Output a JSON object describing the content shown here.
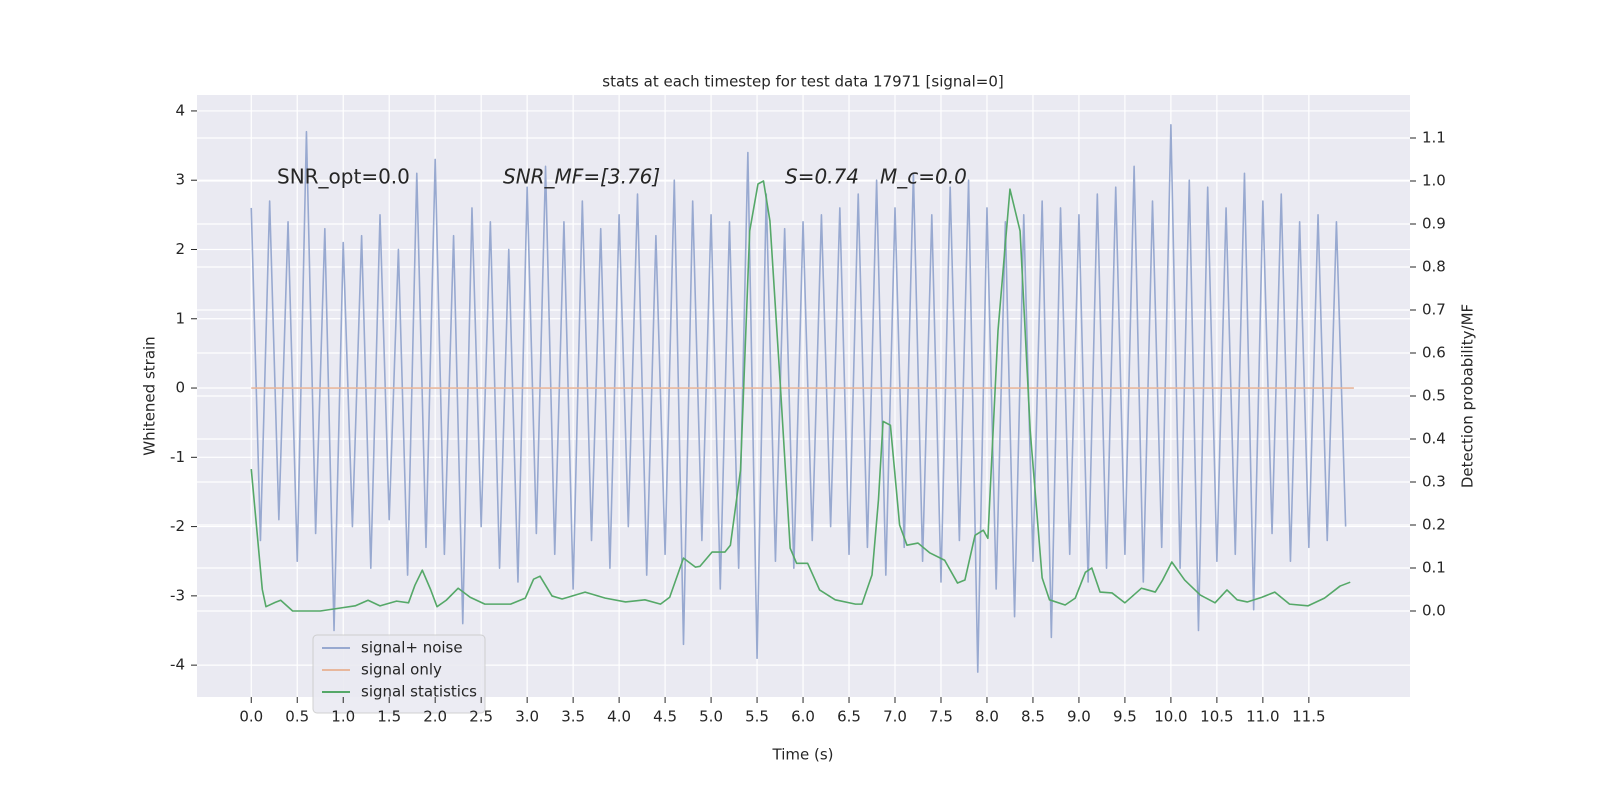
{
  "chart_data": {
    "type": "line",
    "title": "stats at each timestep for test data 17971 [signal=0]",
    "xlabel": "Time (s)",
    "ylabel": "Whitened strain",
    "y2label": "Detection probability/MF",
    "annotations": [
      "SNR_opt=0.0",
      "SNR_MF=[3.76]",
      "S=0.74",
      "M_c=0.0"
    ],
    "xlim": [
      -0.59,
      12.6
    ],
    "ylim": [
      -4.46,
      4.23
    ],
    "y2lim": [
      -0.2,
      1.2
    ],
    "xticks": [
      {
        "value": 0,
        "label": "0.0"
      },
      0.5,
      {
        "value": 1,
        "label": "1.0"
      },
      1.5,
      {
        "value": 2,
        "label": "2.0"
      },
      2.5,
      {
        "value": 3,
        "label": "3.0"
      },
      3.5,
      {
        "value": 4,
        "label": "4.0"
      },
      4.5,
      {
        "value": 5,
        "label": "5.0"
      },
      5.5,
      {
        "value": 6,
        "label": "6.0"
      },
      6.5,
      {
        "value": 7,
        "label": "7.0"
      },
      7.5,
      {
        "value": 8,
        "label": "8.0"
      },
      8.5,
      {
        "value": 9,
        "label": "9.0"
      },
      9.5,
      {
        "value": 10,
        "label": "10.0"
      },
      10.5,
      {
        "value": 11,
        "label": "11.0"
      },
      11.5
    ],
    "yticks": [
      -4,
      -3,
      -2,
      -1,
      0,
      1,
      2,
      3,
      4
    ],
    "y2ticks": [
      {
        "value": 0,
        "label": "0.0"
      },
      0.1,
      0.2,
      0.3,
      0.4,
      0.5,
      0.6,
      0.7,
      0.8,
      0.9,
      {
        "value": 1,
        "label": "1.0"
      },
      1.1
    ],
    "grid": true,
    "legend": "lower left",
    "series": [
      {
        "name": "signal+ noise",
        "color": "#98a9d0",
        "x": [
          0,
          0.1,
          0.2,
          0.3,
          0.4,
          0.5,
          0.6,
          0.7,
          0.8,
          0.9,
          1,
          1.1,
          1.2,
          1.3,
          1.4,
          1.5,
          1.6,
          1.7,
          1.8,
          1.9,
          2,
          2.1,
          2.2,
          2.3,
          2.4,
          2.5,
          2.6,
          2.7,
          2.8,
          2.9,
          3,
          3.1,
          3.2,
          3.3,
          3.4,
          3.5,
          3.6,
          3.7,
          3.8,
          3.9,
          4,
          4.1,
          4.2,
          4.3,
          4.4,
          4.5,
          4.6,
          4.7,
          4.8,
          4.9,
          5,
          5.1,
          5.2,
          5.3,
          5.4,
          5.5,
          5.6,
          5.7,
          5.8,
          5.9,
          6,
          6.1,
          6.2,
          6.3,
          6.4,
          6.5,
          6.6,
          6.7,
          6.8,
          6.9,
          7,
          7.1,
          7.2,
          7.3,
          7.4,
          7.5,
          7.6,
          7.7,
          7.8,
          7.9,
          8,
          8.1,
          8.2,
          8.3,
          8.4,
          8.5,
          8.6,
          8.7,
          8.8,
          8.9,
          9,
          9.1,
          9.2,
          9.3,
          9.4,
          9.5,
          9.6,
          9.7,
          9.8,
          9.9,
          10,
          10.1,
          10.2,
          10.3,
          10.4,
          10.5,
          10.6,
          10.7,
          10.8,
          10.9,
          11,
          11.1,
          11.2,
          11.3,
          11.4,
          11.5,
          11.6,
          11.7,
          11.8,
          11.9
        ],
        "values": [
          2.6,
          -2.2,
          2.7,
          -1.9,
          2.4,
          -2.5,
          3.7,
          -2.1,
          2.3,
          -3.5,
          2.1,
          -2.0,
          2.2,
          -2.6,
          2.5,
          -1.9,
          2.0,
          -2.7,
          3.1,
          -2.3,
          3.3,
          -2.4,
          2.2,
          -3.4,
          2.6,
          -2.0,
          2.4,
          -2.6,
          2.0,
          -2.8,
          2.9,
          -2.1,
          3.2,
          -2.4,
          2.4,
          -2.9,
          2.7,
          -2.2,
          2.3,
          -2.6,
          2.5,
          -2.0,
          2.8,
          -2.7,
          2.2,
          -2.4,
          3.0,
          -3.7,
          2.7,
          -2.2,
          2.5,
          -2.9,
          2.4,
          -2.6,
          3.4,
          -3.9,
          2.8,
          -2.5,
          2.3,
          -2.6,
          2.4,
          -2.2,
          2.5,
          -2.0,
          2.6,
          -2.4,
          2.8,
          -2.3,
          3.0,
          -2.7,
          2.6,
          -2.3,
          3.1,
          -2.5,
          2.5,
          -2.8,
          2.9,
          -2.2,
          3.0,
          -4.1,
          2.6,
          -2.9,
          2.4,
          -3.3,
          2.5,
          -2.5,
          2.7,
          -3.6,
          2.6,
          -2.4,
          2.5,
          -2.8,
          2.8,
          -2.6,
          2.9,
          -2.4,
          3.2,
          -2.8,
          2.7,
          -2.3,
          3.8,
          -2.6,
          3.0,
          -3.5,
          2.9,
          -2.5,
          2.6,
          -2.4,
          3.1,
          -3.2,
          2.7,
          -2.1,
          2.8,
          -2.5,
          2.4,
          -2.3,
          2.5,
          -2.2,
          2.4,
          -2.0
        ]
      },
      {
        "name": "signal only",
        "color": "#e8b79c",
        "x": [
          0,
          11.99
        ],
        "values": [
          0,
          0
        ]
      },
      {
        "name": "signal statistics",
        "color": "#55a868",
        "axis": "y2",
        "x": [
          0,
          0.12,
          0.16,
          0.26,
          0.32,
          0.45,
          0.75,
          0.97,
          1.13,
          1.27,
          1.4,
          1.58,
          1.71,
          1.78,
          1.86,
          1.95,
          2.02,
          2.12,
          2.25,
          2.38,
          2.54,
          2.82,
          2.98,
          3.07,
          3.14,
          3.27,
          3.38,
          3.63,
          3.85,
          4.07,
          4.28,
          4.45,
          4.55,
          4.7,
          4.83,
          4.88,
          5.01,
          5.15,
          5.21,
          5.32,
          5.42,
          5.51,
          5.57,
          5.64,
          5.75,
          5.86,
          5.93,
          6.05,
          6.18,
          6.35,
          6.57,
          6.64,
          6.75,
          6.82,
          6.87,
          6.95,
          7.05,
          7.13,
          7.25,
          7.38,
          7.54,
          7.68,
          7.76,
          7.87,
          7.96,
          8.01,
          8.12,
          8.25,
          8.36,
          8.47,
          8.6,
          8.68,
          8.85,
          8.96,
          9.07,
          9.14,
          9.23,
          9.36,
          9.5,
          9.68,
          9.83,
          9.91,
          10.01,
          10.15,
          10.32,
          10.48,
          10.61,
          10.72,
          10.83,
          10.99,
          11.13,
          11.29,
          11.49,
          11.67,
          11.84,
          11.95
        ],
        "values": [
          0.33,
          0.05,
          0.01,
          0.02,
          0.025,
          0.0,
          0.0,
          0.007,
          0.012,
          0.025,
          0.012,
          0.023,
          0.019,
          0.06,
          0.095,
          0.05,
          0.01,
          0.025,
          0.053,
          0.032,
          0.016,
          0.016,
          0.03,
          0.074,
          0.081,
          0.035,
          0.028,
          0.044,
          0.03,
          0.021,
          0.026,
          0.016,
          0.032,
          0.123,
          0.102,
          0.104,
          0.137,
          0.137,
          0.153,
          0.327,
          0.884,
          0.993,
          1.0,
          0.907,
          0.536,
          0.146,
          0.111,
          0.111,
          0.049,
          0.026,
          0.016,
          0.016,
          0.084,
          0.258,
          0.441,
          0.432,
          0.2,
          0.153,
          0.158,
          0.135,
          0.118,
          0.065,
          0.072,
          0.176,
          0.188,
          0.169,
          0.652,
          0.981,
          0.884,
          0.42,
          0.077,
          0.026,
          0.014,
          0.03,
          0.09,
          0.1,
          0.044,
          0.042,
          0.019,
          0.053,
          0.044,
          0.072,
          0.114,
          0.072,
          0.037,
          0.019,
          0.049,
          0.026,
          0.021,
          0.032,
          0.044,
          0.016,
          0.012,
          0.03,
          0.058,
          0.067
        ]
      }
    ]
  }
}
